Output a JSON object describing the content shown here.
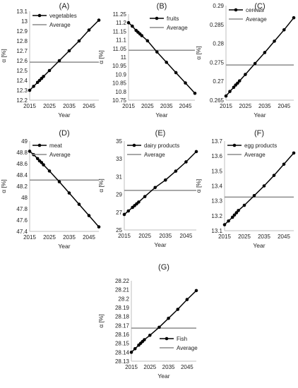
{
  "chart_data": [
    {
      "panel_label": "(A)",
      "type": "line",
      "xlabel": "Year",
      "ylabel": "α [%]",
      "xlim": [
        2015,
        2050
      ],
      "ylim": [
        12.2,
        13.1
      ],
      "x_ticks": [
        2015,
        2025,
        2035,
        2045
      ],
      "y_ticks": [
        12.2,
        12.3,
        12.4,
        12.5,
        12.6,
        12.7,
        12.8,
        12.9,
        13,
        13.1
      ],
      "legend": "top-left",
      "series": [
        {
          "name": "vegetables",
          "x": [
            2015,
            2017,
            2019,
            2020,
            2021,
            2022,
            2025,
            2030,
            2035,
            2040,
            2045,
            2050
          ],
          "y": [
            12.3,
            12.34,
            12.38,
            12.4,
            12.42,
            12.44,
            12.5,
            12.6,
            12.7,
            12.8,
            12.91,
            13.01
          ]
        },
        {
          "name": "Average",
          "constant": 12.585
        }
      ]
    },
    {
      "panel_label": "(B)",
      "type": "line",
      "xlabel": "Year",
      "ylabel": "α [%]",
      "xlim": [
        2015,
        2050
      ],
      "ylim": [
        10.75,
        11.25
      ],
      "x_ticks": [
        2015,
        2025,
        2035,
        2045
      ],
      "y_ticks": [
        10.75,
        10.8,
        10.85,
        10.9,
        10.95,
        11,
        11.05,
        11.1,
        11.15,
        11.2,
        11.25
      ],
      "legend": "top-right",
      "series": [
        {
          "name": "fruits",
          "x": [
            2015,
            2017,
            2019,
            2020,
            2021,
            2022,
            2025,
            2030,
            2035,
            2040,
            2045,
            2050
          ],
          "y": [
            11.2,
            11.18,
            11.155,
            11.145,
            11.135,
            11.125,
            11.095,
            11.03,
            10.97,
            10.91,
            10.85,
            10.79
          ]
        },
        {
          "name": "Average",
          "constant": 11.04
        }
      ]
    },
    {
      "panel_label": "(C)",
      "type": "line",
      "xlabel": "Year",
      "ylabel": "α [%]",
      "xlim": [
        2015,
        2050
      ],
      "ylim": [
        0.265,
        0.29
      ],
      "x_ticks": [
        2015,
        2025,
        2035,
        2045
      ],
      "y_ticks": [
        0.265,
        0.27,
        0.275,
        0.28,
        0.285,
        0.29
      ],
      "legend": "top-left",
      "series": [
        {
          "name": "cereals",
          "x": [
            2015,
            2017,
            2019,
            2020,
            2021,
            2022,
            2025,
            2030,
            2035,
            2040,
            2045,
            2050
          ],
          "y": [
            0.2661,
            0.2673,
            0.2684,
            0.269,
            0.2695,
            0.2701,
            0.2718,
            0.2747,
            0.2776,
            0.2806,
            0.2836,
            0.2868
          ]
        },
        {
          "name": "Average",
          "constant": 0.2743
        }
      ]
    },
    {
      "panel_label": "(D)",
      "type": "line",
      "xlabel": "Year",
      "ylabel": "α [%]",
      "xlim": [
        2015,
        2050
      ],
      "ylim": [
        47.4,
        49
      ],
      "x_ticks": [
        2015,
        2025,
        2035,
        2045
      ],
      "y_ticks": [
        47.4,
        47.6,
        47.8,
        48,
        48.2,
        48.4,
        48.6,
        48.8,
        49
      ],
      "legend": "top-left",
      "series": [
        {
          "name": "meat",
          "x": [
            2015,
            2017,
            2019,
            2020,
            2021,
            2022,
            2025,
            2030,
            2035,
            2040,
            2045,
            2050
          ],
          "y": [
            48.82,
            48.76,
            48.69,
            48.65,
            48.62,
            48.58,
            48.47,
            48.28,
            48.08,
            47.88,
            47.68,
            47.48
          ]
        },
        {
          "name": "Average",
          "constant": 48.31
        }
      ]
    },
    {
      "panel_label": "(E)",
      "type": "line",
      "xlabel": "Year",
      "ylabel": "α [%]",
      "xlim": [
        2015,
        2050
      ],
      "ylim": [
        25,
        35
      ],
      "x_ticks": [
        2015,
        2025,
        2035,
        2045
      ],
      "y_ticks": [
        25,
        27,
        29,
        31,
        33,
        35
      ],
      "legend": "top-left",
      "series": [
        {
          "name": "dairy products",
          "x": [
            2015,
            2017,
            2019,
            2020,
            2021,
            2022,
            2025,
            2030,
            2035,
            2040,
            2045,
            2050
          ],
          "y": [
            26.75,
            27.14,
            27.54,
            27.74,
            27.94,
            28.14,
            28.76,
            29.78,
            30.62,
            31.62,
            32.66,
            33.82
          ]
        },
        {
          "name": "Average",
          "constant": 29.45
        }
      ]
    },
    {
      "panel_label": "(F)",
      "type": "line",
      "xlabel": "Year",
      "ylabel": "α [%]",
      "xlim": [
        2015,
        2050
      ],
      "ylim": [
        13.1,
        13.7
      ],
      "x_ticks": [
        2015,
        2025,
        2035,
        2045
      ],
      "y_ticks": [
        13.1,
        13.2,
        13.3,
        13.4,
        13.5,
        13.6,
        13.7
      ],
      "legend": "top-left",
      "series": [
        {
          "name": "egg products",
          "x": [
            2015,
            2017,
            2019,
            2020,
            2021,
            2022,
            2025,
            2030,
            2035,
            2040,
            2045,
            2050
          ],
          "y": [
            13.14,
            13.165,
            13.19,
            13.205,
            13.22,
            13.235,
            13.27,
            13.335,
            13.4,
            13.47,
            13.545,
            13.62
          ]
        },
        {
          "name": "Average",
          "constant": 13.325
        }
      ]
    },
    {
      "panel_label": "(G)",
      "type": "line",
      "xlabel": "Year",
      "ylabel": "α [%]",
      "xlim": [
        2015,
        2050
      ],
      "ylim": [
        28.13,
        28.22
      ],
      "x_ticks": [
        2015,
        2025,
        2035,
        2045
      ],
      "y_ticks": [
        28.13,
        28.14,
        28.15,
        28.16,
        28.17,
        28.18,
        28.19,
        28.2,
        28.21,
        28.22
      ],
      "legend": "bottom-right",
      "series": [
        {
          "name": "Fish",
          "x": [
            2015,
            2017,
            2019,
            2020,
            2021,
            2022,
            2025,
            2030,
            2035,
            2040,
            2045,
            2050
          ],
          "y": [
            28.14,
            28.144,
            28.148,
            28.15,
            28.152,
            28.154,
            28.159,
            28.168,
            28.178,
            28.188,
            28.199,
            28.209
          ]
        },
        {
          "name": "Average",
          "constant": 28.167
        }
      ]
    }
  ],
  "colors": {
    "series_line": "#000000",
    "average_line": "#8c8c8c",
    "axis": "#bfbfbf",
    "text": "#222222"
  }
}
